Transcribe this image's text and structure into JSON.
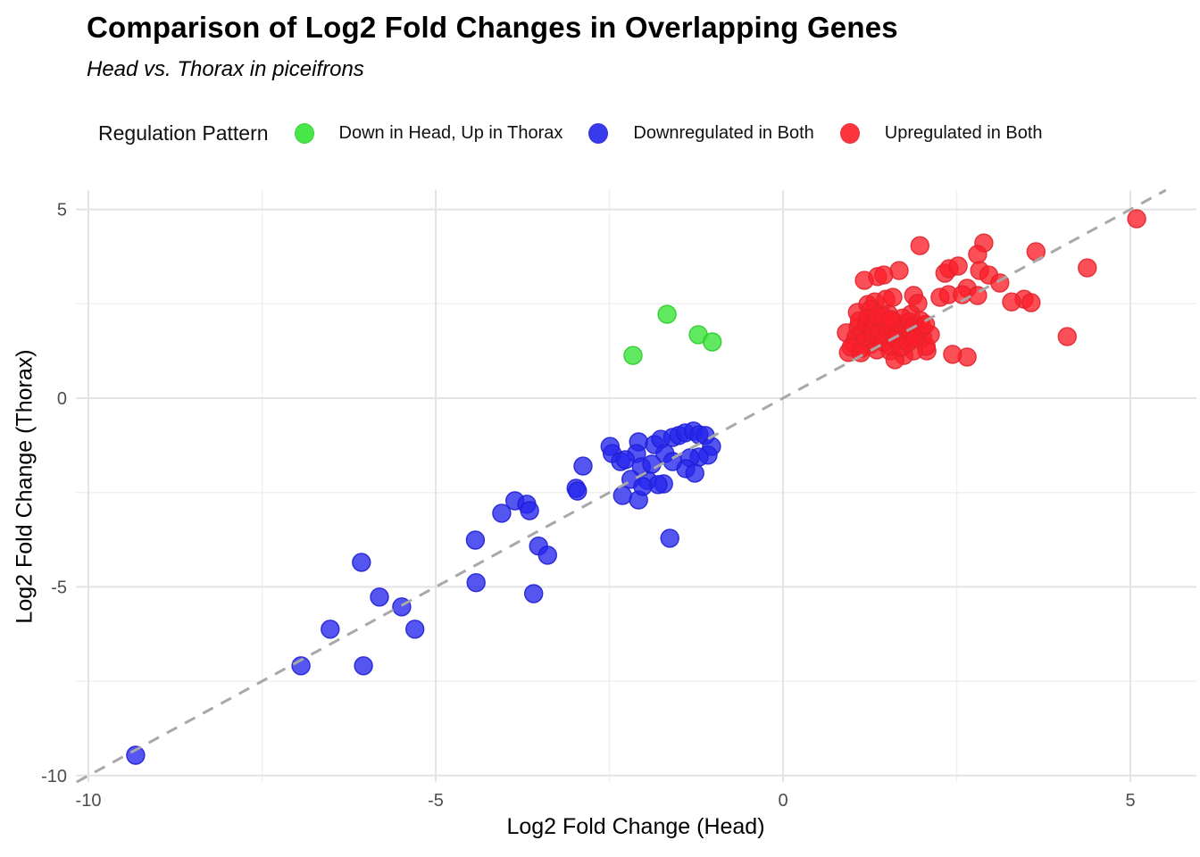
{
  "title": "Comparison of Log2 Fold Changes in Overlapping Genes",
  "subtitle": "Head vs. Thorax in piceifrons",
  "legend": {
    "title": "Regulation Pattern",
    "items": [
      {
        "label": "Down in Head, Up in Thorax",
        "color": "#35e435",
        "stroke": "#2cc92c"
      },
      {
        "label": "Downregulated in Both",
        "color": "#2525ec",
        "stroke": "#1f1fd6"
      },
      {
        "label": "Upregulated in Both",
        "color": "#fb1f2a",
        "stroke": "#e0242e"
      }
    ]
  },
  "chart_data": {
    "type": "scatter",
    "xlabel": "Log2 Fold Change (Head)",
    "ylabel": "Log2 Fold Change (Thorax)",
    "xlim": [
      -10.18,
      5.95
    ],
    "ylim": [
      -10.17,
      5.51
    ],
    "xticks": [
      -10,
      -5,
      0,
      5
    ],
    "yticks": [
      -10,
      -5,
      0,
      5
    ],
    "minor_xticks": [
      -7.5,
      -2.5,
      2.5
    ],
    "minor_yticks": [
      -7.5,
      -2.5,
      2.5
    ],
    "grid": true,
    "tick_color": "#4d4d4d",
    "major_grid_color": "#e3e3e3",
    "minor_grid_color": "#f0f0f0",
    "reference_line": {
      "type": "identity y=x",
      "style": "dashed",
      "color": "#a8a8a8"
    },
    "point_alpha": 0.78,
    "point_radius": 10,
    "series": [
      {
        "name": "Upregulated in Both",
        "color": "#fb1f2a",
        "stroke": "#e0242e",
        "points": [
          [
            1.97,
            4.04
          ],
          [
            2.89,
            4.11
          ],
          [
            2.8,
            3.81
          ],
          [
            3.64,
            3.88
          ],
          [
            4.38,
            3.45
          ],
          [
            5.09,
            4.75
          ],
          [
            1.17,
            3.12
          ],
          [
            1.36,
            3.22
          ],
          [
            1.45,
            3.26
          ],
          [
            1.67,
            3.38
          ],
          [
            2.33,
            3.31
          ],
          [
            2.39,
            3.43
          ],
          [
            2.52,
            3.5
          ],
          [
            2.83,
            3.38
          ],
          [
            2.96,
            3.26
          ],
          [
            3.12,
            3.05
          ],
          [
            2.65,
            2.91
          ],
          [
            2.8,
            2.72
          ],
          [
            3.47,
            2.62
          ],
          [
            3.57,
            2.53
          ],
          [
            3.29,
            2.55
          ],
          [
            1.32,
            2.55
          ],
          [
            1.48,
            2.62
          ],
          [
            1.58,
            2.67
          ],
          [
            1.88,
            2.72
          ],
          [
            1.94,
            2.51
          ],
          [
            2.26,
            2.67
          ],
          [
            2.38,
            2.74
          ],
          [
            2.58,
            2.74
          ],
          [
            1.07,
            2.27
          ],
          [
            1.22,
            2.48
          ],
          [
            1.26,
            2.35
          ],
          [
            1.84,
            2.22
          ],
          [
            0.91,
            1.73
          ],
          [
            0.94,
            1.21
          ],
          [
            4.09,
            1.63
          ],
          [
            2.65,
            1.09
          ],
          [
            2.44,
            1.16
          ],
          [
            2.07,
            1.25
          ],
          [
            1.54,
            1.25
          ],
          [
            2.01,
            1.61
          ],
          [
            2.06,
            1.37
          ],
          [
            2.12,
            1.68
          ],
          [
            1.88,
            1.25
          ],
          [
            1.74,
            1.13
          ],
          [
            1.61,
            1.02
          ],
          [
            1.02,
            1.45
          ],
          [
            1.05,
            1.62
          ],
          [
            1.08,
            1.88
          ],
          [
            1.1,
            2.05
          ],
          [
            1.13,
            1.32
          ],
          [
            1.15,
            1.75
          ],
          [
            1.18,
            1.55
          ],
          [
            1.2,
            1.95
          ],
          [
            1.22,
            2.12
          ],
          [
            1.25,
            1.42
          ],
          [
            1.28,
            1.68
          ],
          [
            1.3,
            1.85
          ],
          [
            1.32,
            2.02
          ],
          [
            1.35,
            1.28
          ],
          [
            1.38,
            1.58
          ],
          [
            1.4,
            1.78
          ],
          [
            1.42,
            2.08
          ],
          [
            1.45,
            1.48
          ],
          [
            1.48,
            1.92
          ],
          [
            1.5,
            1.65
          ],
          [
            1.52,
            2.22
          ],
          [
            1.55,
            1.38
          ],
          [
            1.58,
            1.82
          ],
          [
            1.6,
            2.02
          ],
          [
            1.62,
            1.55
          ],
          [
            1.65,
            1.72
          ],
          [
            1.68,
            1.95
          ],
          [
            1.7,
            1.35
          ],
          [
            1.72,
            2.12
          ],
          [
            1.75,
            1.62
          ],
          [
            1.78,
            1.88
          ],
          [
            1.8,
            1.48
          ],
          [
            1.82,
            2.02
          ],
          [
            1.85,
            1.7
          ],
          [
            1.88,
            1.92
          ],
          [
            1.9,
            1.58
          ],
          [
            1.95,
            1.78
          ],
          [
            1.98,
            2.05
          ],
          [
            2.0,
            1.88
          ],
          [
            2.05,
            1.95
          ],
          [
            1.35,
            2.18
          ],
          [
            1.45,
            2.15
          ],
          [
            1.55,
            2.08
          ],
          [
            0.98,
            1.35
          ],
          [
            1.12,
            1.2
          ]
        ]
      },
      {
        "name": "Downregulated in Both",
        "color": "#2525ec",
        "stroke": "#1f1fd6",
        "points": [
          [
            -9.32,
            -9.46
          ],
          [
            -6.94,
            -7.09
          ],
          [
            -6.04,
            -7.09
          ],
          [
            -6.52,
            -6.12
          ],
          [
            -5.3,
            -6.12
          ],
          [
            -5.81,
            -5.27
          ],
          [
            -5.49,
            -5.53
          ],
          [
            -6.07,
            -4.35
          ],
          [
            -4.42,
            -4.89
          ],
          [
            -3.59,
            -5.18
          ],
          [
            -4.43,
            -3.76
          ],
          [
            -4.05,
            -3.05
          ],
          [
            -3.86,
            -2.72
          ],
          [
            -3.69,
            -2.81
          ],
          [
            -3.65,
            -2.98
          ],
          [
            -3.52,
            -3.92
          ],
          [
            -3.39,
            -4.16
          ],
          [
            -2.98,
            -2.39
          ],
          [
            -2.88,
            -1.8
          ],
          [
            -2.96,
            -2.46
          ],
          [
            -2.49,
            -1.28
          ],
          [
            -2.46,
            -1.47
          ],
          [
            -2.34,
            -1.68
          ],
          [
            -2.31,
            -2.58
          ],
          [
            -2.19,
            -2.15
          ],
          [
            -2.08,
            -2.7
          ],
          [
            -1.95,
            -2.18
          ],
          [
            -1.72,
            -2.27
          ],
          [
            -1.63,
            -3.71
          ],
          [
            -2.08,
            -1.16
          ],
          [
            -2.11,
            -1.47
          ],
          [
            -2.04,
            -1.82
          ],
          [
            -1.85,
            -1.23
          ],
          [
            -1.76,
            -1.09
          ],
          [
            -1.7,
            -1.47
          ],
          [
            -1.59,
            -1.04
          ],
          [
            -1.5,
            -0.99
          ],
          [
            -1.41,
            -0.92
          ],
          [
            -1.29,
            -0.87
          ],
          [
            -1.21,
            -0.97
          ],
          [
            -1.12,
            -0.99
          ],
          [
            -1.03,
            -1.28
          ],
          [
            -1.08,
            -1.51
          ],
          [
            -1.21,
            -1.56
          ],
          [
            -1.34,
            -1.58
          ],
          [
            -1.4,
            -1.87
          ],
          [
            -1.27,
            -1.99
          ],
          [
            -1.59,
            -1.68
          ],
          [
            -1.89,
            -1.75
          ],
          [
            -1.8,
            -2.29
          ],
          [
            -2.02,
            -2.34
          ],
          [
            -2.27,
            -1.63
          ]
        ]
      },
      {
        "name": "Down in Head, Up in Thorax",
        "color": "#35e435",
        "stroke": "#2cc92c",
        "points": [
          [
            -1.67,
            2.22
          ],
          [
            -1.22,
            1.68
          ],
          [
            -1.02,
            1.49
          ],
          [
            -2.16,
            1.13
          ]
        ]
      }
    ]
  }
}
